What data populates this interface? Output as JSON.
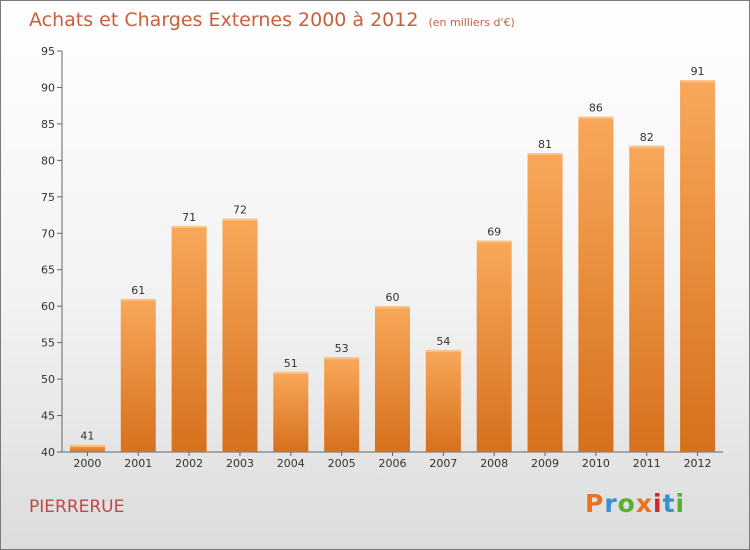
{
  "header": {
    "title": "Achats et Charges Externes 2000 à 2012",
    "unit": "(en milliers d'€)"
  },
  "footer": {
    "location": "PIERRERUE",
    "logo": "Proxiti"
  },
  "colors": {
    "bar_top": "#f8a85a",
    "bar_bottom": "#d6701c",
    "title": "#c8603c",
    "location": "#c04848",
    "logo_letters": [
      "#e8731c",
      "#3a8fd0",
      "#58b030",
      "#e8731c",
      "#d02828",
      "#3a8fd0",
      "#58b030"
    ]
  },
  "chart_data": {
    "type": "bar",
    "title": "Achats et Charges Externes 2000 à 2012",
    "categories": [
      "2000",
      "2001",
      "2002",
      "2003",
      "2004",
      "2005",
      "2006",
      "2007",
      "2008",
      "2009",
      "2010",
      "2011",
      "2012"
    ],
    "values": [
      41,
      61,
      71,
      72,
      51,
      53,
      60,
      54,
      69,
      81,
      86,
      82,
      91
    ],
    "ylim": [
      40,
      95
    ],
    "yticks": [
      40,
      45,
      50,
      55,
      60,
      65,
      70,
      75,
      80,
      85,
      90,
      95
    ],
    "grid": false,
    "legend": "none"
  }
}
